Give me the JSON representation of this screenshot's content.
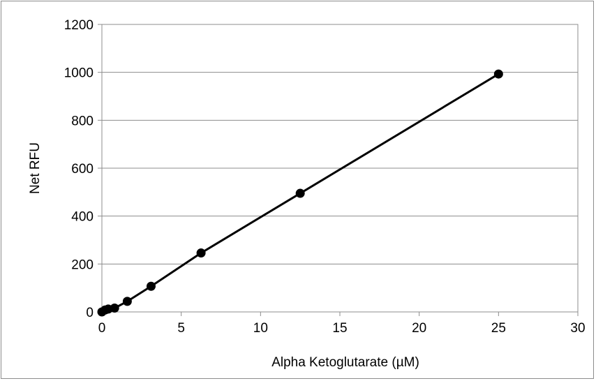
{
  "chart_data": {
    "type": "scatter",
    "title": "",
    "xlabel": "Alpha Ketoglutarate (µM)",
    "ylabel": "Net RFU",
    "xlim": [
      0,
      30
    ],
    "ylim": [
      0,
      1200
    ],
    "xticks": [
      0,
      5,
      10,
      15,
      20,
      25,
      30
    ],
    "yticks": [
      0,
      200,
      400,
      600,
      800,
      1000,
      1200
    ],
    "grid": "horizontal",
    "legend": "none",
    "line_color": "#000000",
    "marker_color": "#000000",
    "gridline_color": "#8c8c8c",
    "series": [
      {
        "x": [
          0,
          0.2,
          0.4,
          0.8,
          1.6,
          3.1,
          6.25,
          12.5,
          25
        ],
        "y": [
          0,
          8,
          12,
          16,
          44,
          107,
          246,
          495,
          993
        ]
      }
    ]
  }
}
